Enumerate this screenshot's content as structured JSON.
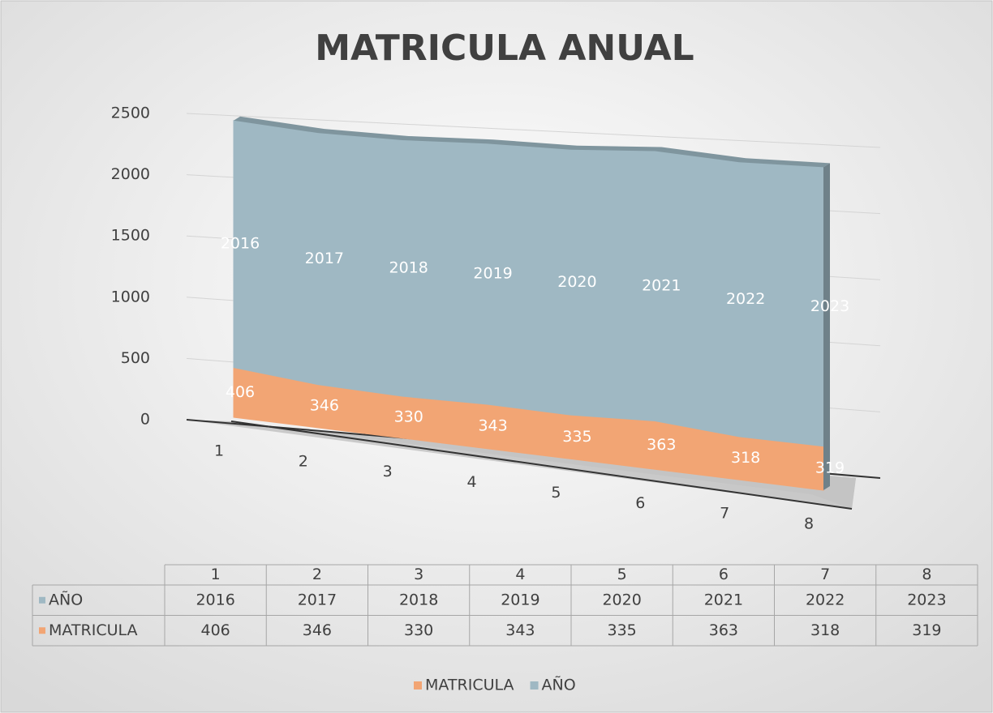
{
  "chart_data": {
    "type": "area3d",
    "title": "MATRICULA ANUAL",
    "categories": [
      "1",
      "2",
      "3",
      "4",
      "5",
      "6",
      "7",
      "8"
    ],
    "series": [
      {
        "name": "MATRICULA",
        "color": "#f2a574",
        "values": [
          406,
          346,
          330,
          343,
          335,
          363,
          318,
          319
        ]
      },
      {
        "name": "AÑO",
        "color": "#9fb8c3",
        "values": [
          2016,
          2017,
          2018,
          2019,
          2020,
          2021,
          2022,
          2023
        ]
      }
    ],
    "stacked": true,
    "ylim": [
      0,
      2500
    ],
    "yticks": [
      0,
      500,
      1000,
      1500,
      2000,
      2500
    ],
    "grid": true,
    "legend": "bottom",
    "data_table": true
  }
}
